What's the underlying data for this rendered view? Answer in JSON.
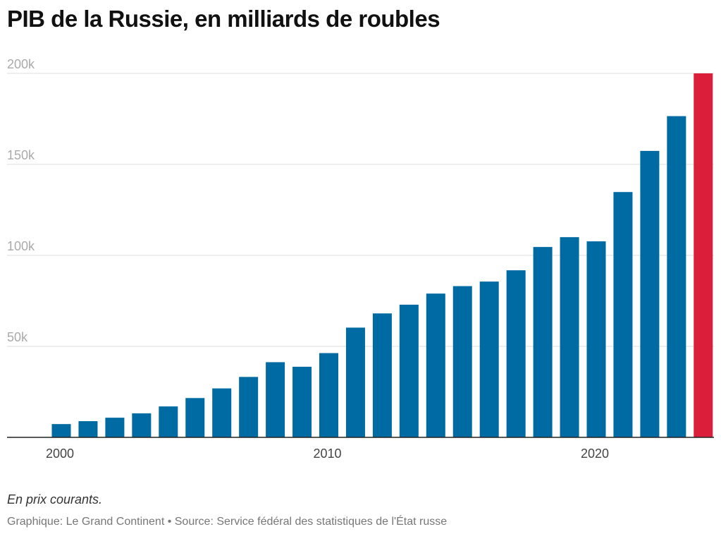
{
  "chart_data": {
    "type": "bar",
    "title": "PIB de la Russie, en milliards de roubles",
    "note": "En prix courants.",
    "credit": "Graphique: Le Grand Continent • Source: Service fédéral des statistiques de l'État russe",
    "xlabel": "",
    "ylabel": "",
    "ylim": [
      0,
      200000
    ],
    "yticks": [
      {
        "value": 50000,
        "label": "50k"
      },
      {
        "value": 100000,
        "label": "100k"
      },
      {
        "value": 150000,
        "label": "150k"
      },
      {
        "value": 200000,
        "label": "200k"
      }
    ],
    "xticks": [
      {
        "value": 2000,
        "label": "2000"
      },
      {
        "value": 2010,
        "label": "2010"
      },
      {
        "value": 2020,
        "label": "2020"
      }
    ],
    "grid": true,
    "colors": {
      "default": "#006ba2",
      "highlight": "#db1f3a"
    },
    "highlight_year": 2024,
    "x": [
      2000,
      2001,
      2002,
      2003,
      2004,
      2005,
      2006,
      2007,
      2008,
      2009,
      2010,
      2011,
      2012,
      2013,
      2014,
      2015,
      2016,
      2017,
      2018,
      2019,
      2020,
      2021,
      2022,
      2023,
      2024
    ],
    "values": [
      7300,
      8900,
      10800,
      13200,
      17000,
      21600,
      26900,
      33200,
      41300,
      38800,
      46300,
      60300,
      68100,
      72900,
      79000,
      83100,
      85600,
      91800,
      104600,
      110000,
      107700,
      134800,
      157400,
      176500,
      200000
    ]
  }
}
